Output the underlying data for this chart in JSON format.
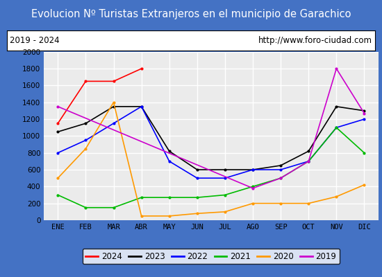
{
  "title": "Evolucion Nº Turistas Extranjeros en el municipio de Garachico",
  "subtitle_left": "2019 - 2024",
  "subtitle_right": "http://www.foro-ciudad.com",
  "x_labels": [
    "ENE",
    "FEB",
    "MAR",
    "ABR",
    "MAY",
    "JUN",
    "JUL",
    "AGO",
    "SEP",
    "OCT",
    "NOV",
    "DIC"
  ],
  "ylim": [
    0,
    2000
  ],
  "yticks": [
    0,
    200,
    400,
    600,
    800,
    1000,
    1200,
    1400,
    1600,
    1800,
    2000
  ],
  "series": {
    "2024": {
      "color": "#ff0000",
      "data": [
        1150,
        1650,
        1650,
        1800,
        null,
        null,
        null,
        null,
        null,
        null,
        null,
        null
      ]
    },
    "2023": {
      "color": "#000000",
      "data": [
        1050,
        1150,
        1350,
        1350,
        820,
        600,
        600,
        600,
        650,
        820,
        1350,
        1300
      ]
    },
    "2022": {
      "color": "#0000ff",
      "data": [
        800,
        950,
        1150,
        1350,
        700,
        500,
        500,
        600,
        600,
        700,
        1100,
        1200
      ]
    },
    "2021": {
      "color": "#00bb00",
      "data": [
        300,
        150,
        150,
        270,
        270,
        270,
        300,
        400,
        500,
        700,
        1100,
        800
      ]
    },
    "2020": {
      "color": "#ff9900",
      "data": [
        500,
        850,
        1400,
        50,
        50,
        80,
        100,
        200,
        200,
        200,
        280,
        420
      ]
    },
    "2019": {
      "color": "#cc00cc",
      "data": [
        1350,
        null,
        null,
        null,
        null,
        null,
        null,
        380,
        500,
        700,
        1800,
        1270
      ]
    }
  },
  "title_bg_color": "#4472c4",
  "title_font_color": "#ffffff",
  "title_fontsize": 10.5,
  "subtitle_fontsize": 8.5,
  "plot_bg_color": "#ebebeb",
  "grid_color": "#ffffff",
  "legend_fontsize": 8.5,
  "border_color": "#4472c4",
  "fig_width": 5.5,
  "fig_height": 4.0,
  "fig_dpi": 100
}
